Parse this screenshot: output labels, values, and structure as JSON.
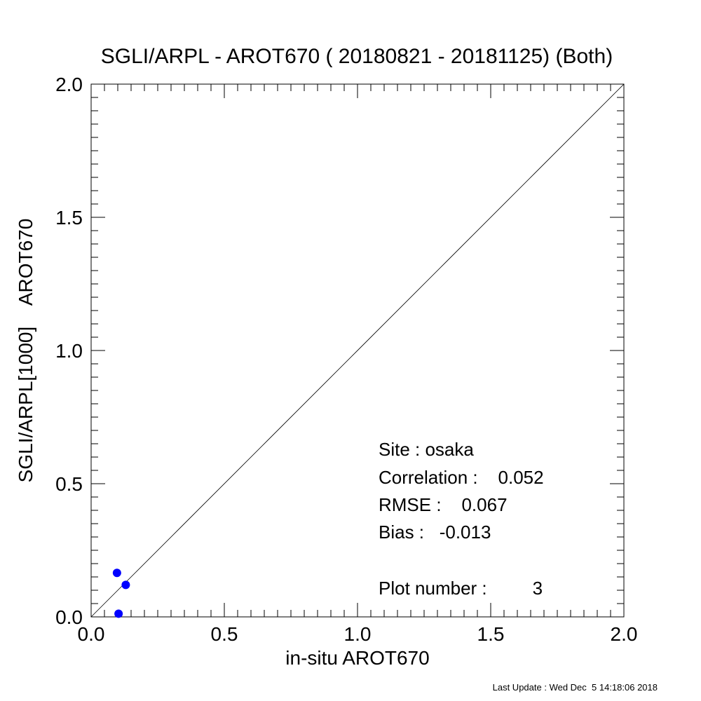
{
  "chart_data": {
    "type": "scatter",
    "title": "SGLI/ARPL - AROT670 ( 20180821 - 20181125) (Both)",
    "xlabel": "in-situ AROT670",
    "ylabel": "SGLI/ARPL[1000]    AROT670",
    "xlim": [
      0.0,
      2.0
    ],
    "ylim": [
      0.0,
      2.0
    ],
    "x_ticks": [
      "0.0",
      "0.5",
      "1.0",
      "1.5",
      "2.0"
    ],
    "y_ticks": [
      "0.0",
      "0.5",
      "1.0",
      "1.5",
      "2.0"
    ],
    "x_tick_values": [
      0.0,
      0.5,
      1.0,
      1.5,
      2.0
    ],
    "y_tick_values": [
      0.0,
      0.5,
      1.0,
      1.5,
      2.0
    ],
    "minor_tick_step": 0.05,
    "reference_line": "1:1",
    "grid": false,
    "point_color": "#0000ff",
    "points": [
      {
        "x": 0.097,
        "y": 0.165
      },
      {
        "x": 0.13,
        "y": 0.12
      },
      {
        "x": 0.103,
        "y": 0.012
      }
    ],
    "annotations": {
      "site": "Site : osaka",
      "correlation": "Correlation :    0.052",
      "rmse": "RMSE :    0.067",
      "bias": "Bias :   -0.013",
      "plot_number": "Plot number :         3"
    }
  },
  "footer": {
    "last_update": "Last Update : Wed Dec  5 14:18:06 2018"
  }
}
